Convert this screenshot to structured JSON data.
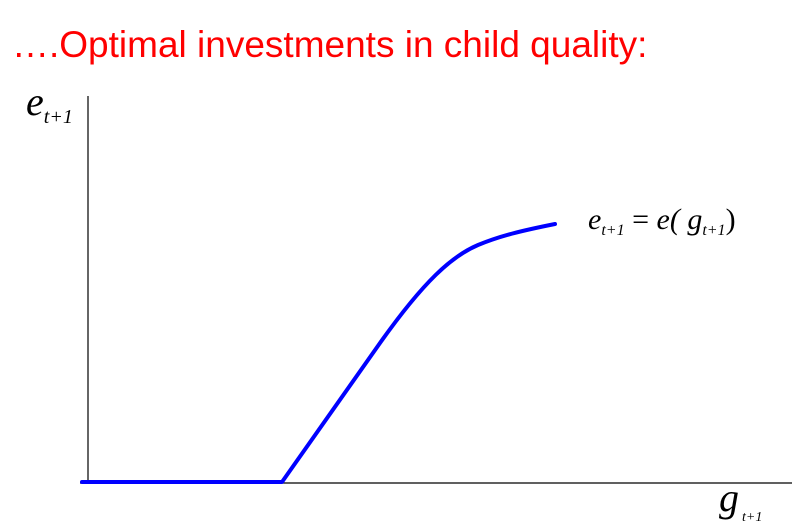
{
  "title": {
    "text": "….Optimal investments in child quality:",
    "color": "#ff0000"
  },
  "y_axis_label": {
    "symbol": "e",
    "subscript": "t+1"
  },
  "x_axis_label": {
    "symbol": "g",
    "subscript": "t+1"
  },
  "curve_label": {
    "lhs_symbol": "e",
    "lhs_subscript": "t+1",
    "equals": "=",
    "function": "e(",
    "arg_symbol": "g",
    "arg_subscript": "t+1",
    "close": ")"
  },
  "curve": {
    "color": "#0000ff",
    "shape": "zero-then-concave-increasing"
  }
}
